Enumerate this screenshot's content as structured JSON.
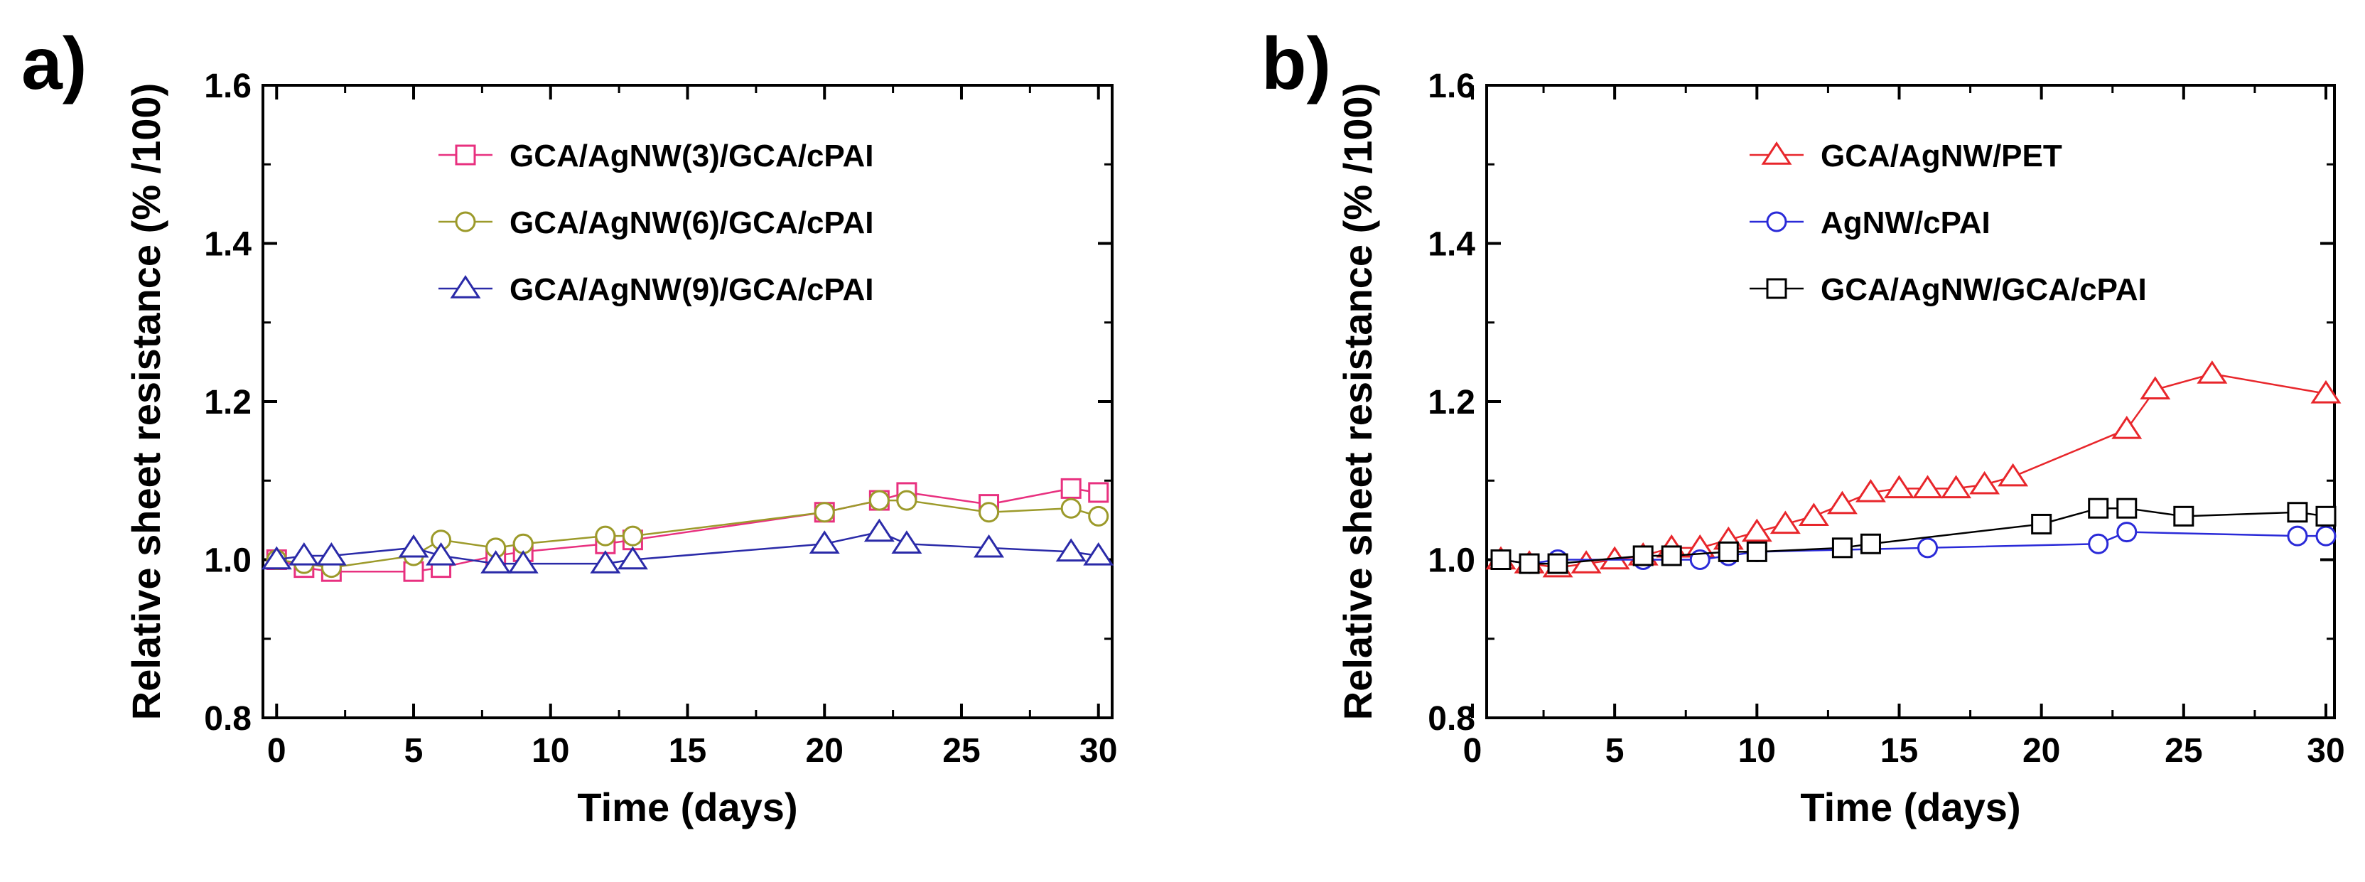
{
  "chart_data": [
    {
      "panel_label": "a)",
      "type": "line",
      "title": "",
      "xlabel": "Time (days)",
      "ylabel": "Relative sheet resistance (% /100)",
      "xlim": [
        -0.5,
        30.5
      ],
      "ylim": [
        0.8,
        1.6
      ],
      "xticks": [
        0,
        5,
        10,
        15,
        20,
        25,
        30
      ],
      "yticks": [
        0.8,
        1.0,
        1.2,
        1.4,
        1.6
      ],
      "ytick_labels": [
        "0.8",
        "1.0",
        "1.2",
        "1.4",
        "1.6"
      ],
      "legend_position": "top-right",
      "series": [
        {
          "name": "GCA/AgNW(3)/GCA/cPAI",
          "color": "#e8307f",
          "marker": "square",
          "x": [
            0,
            1,
            2,
            5,
            6,
            8,
            9,
            12,
            13,
            20,
            22,
            23,
            26,
            29,
            30
          ],
          "y": [
            1.0,
            0.99,
            0.985,
            0.985,
            0.99,
            1.005,
            1.01,
            1.02,
            1.025,
            1.06,
            1.075,
            1.085,
            1.07,
            1.09,
            1.085
          ]
        },
        {
          "name": "GCA/AgNW(6)/GCA/cPAI",
          "color": "#9c9a2a",
          "marker": "circle",
          "x": [
            0,
            1,
            2,
            5,
            6,
            8,
            9,
            12,
            13,
            20,
            22,
            23,
            26,
            29,
            30
          ],
          "y": [
            1.0,
            0.995,
            0.99,
            1.005,
            1.025,
            1.015,
            1.02,
            1.03,
            1.03,
            1.06,
            1.075,
            1.075,
            1.06,
            1.065,
            1.055
          ]
        },
        {
          "name": "GCA/AgNW(9)/GCA/cPAI",
          "color": "#2a2aa8",
          "marker": "triangle",
          "x": [
            0,
            1,
            2,
            5,
            6,
            8,
            9,
            12,
            13,
            20,
            22,
            23,
            26,
            29,
            30
          ],
          "y": [
            1.0,
            1.005,
            1.005,
            1.015,
            1.005,
            0.995,
            0.995,
            0.995,
            1.0,
            1.02,
            1.035,
            1.02,
            1.015,
            1.01,
            1.005
          ]
        }
      ]
    },
    {
      "panel_label": "b)",
      "type": "line",
      "title": "",
      "xlabel": "Time (days)",
      "ylabel": "Relative sheet resistance (% /100)",
      "xlim": [
        0.5,
        30.3
      ],
      "ylim": [
        0.8,
        1.6
      ],
      "xticks": [
        0,
        5,
        10,
        15,
        20,
        25,
        30
      ],
      "yticks": [
        0.8,
        1.0,
        1.2,
        1.4,
        1.6
      ],
      "ytick_labels": [
        "0.8",
        "1.0",
        "1.2",
        "1.4",
        "1.6"
      ],
      "legend_position": "top-right",
      "series": [
        {
          "name": "GCA/AgNW/PET",
          "color": "#e8262b",
          "marker": "triangle",
          "x": [
            1,
            2,
            3,
            4,
            5,
            6,
            7,
            8,
            9,
            10,
            11,
            12,
            13,
            14,
            15,
            16,
            17,
            18,
            19,
            23,
            24,
            26,
            30
          ],
          "y": [
            1.0,
            0.995,
            0.99,
            0.995,
            1.0,
            1.005,
            1.015,
            1.015,
            1.025,
            1.035,
            1.045,
            1.055,
            1.07,
            1.085,
            1.09,
            1.09,
            1.09,
            1.095,
            1.105,
            1.165,
            1.215,
            1.235,
            1.21
          ]
        },
        {
          "name": "AgNW/cPAI",
          "color": "#2a2ad8",
          "marker": "circle",
          "x": [
            1,
            2,
            3,
            6,
            8,
            9,
            10,
            16,
            22,
            23,
            29,
            30
          ],
          "y": [
            1.0,
            0.995,
            1.0,
            1.0,
            1.0,
            1.005,
            1.01,
            1.015,
            1.02,
            1.035,
            1.03,
            1.03
          ]
        },
        {
          "name": "GCA/AgNW/GCA/cPAI",
          "color": "#000000",
          "marker": "square",
          "x": [
            1,
            2,
            3,
            6,
            7,
            9,
            10,
            13,
            14,
            20,
            22,
            23,
            25,
            29,
            30
          ],
          "y": [
            1.0,
            0.995,
            0.995,
            1.005,
            1.005,
            1.01,
            1.01,
            1.015,
            1.02,
            1.045,
            1.065,
            1.065,
            1.055,
            1.06,
            1.055
          ]
        }
      ]
    }
  ]
}
